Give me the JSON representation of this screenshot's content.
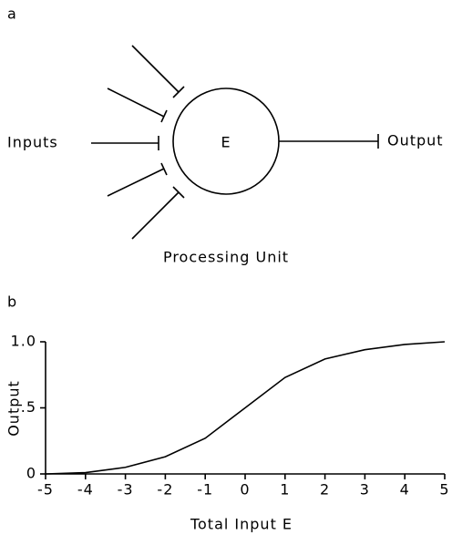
{
  "diagram": {
    "label": "a",
    "inputs_label": "Inputs",
    "unit_label": "E",
    "output_label": "Output",
    "caption": "Processing Unit"
  },
  "chart_data": {
    "type": "line",
    "panel_label": "b",
    "ylabel": "Output",
    "xlabel": "Total Input E",
    "x": [
      -5,
      -4,
      -3,
      -2,
      -1,
      0,
      1,
      2,
      3,
      4,
      5
    ],
    "series": [
      {
        "color": "#000000",
        "values": [
          0,
          0.01,
          0.05,
          0.13,
          0.27,
          0.5,
          0.73,
          0.87,
          0.94,
          0.98,
          1.0
        ]
      }
    ],
    "xlim": [
      -5,
      5
    ],
    "xticks": [
      -5,
      -4,
      -3,
      -2,
      -1,
      0,
      1,
      2,
      3,
      4,
      5
    ],
    "ylim": [
      0,
      1
    ],
    "yticks": [
      0,
      {
        "value": 0.5,
        "label": ".5"
      },
      {
        "value": 1,
        "label": "1.0"
      }
    ]
  }
}
